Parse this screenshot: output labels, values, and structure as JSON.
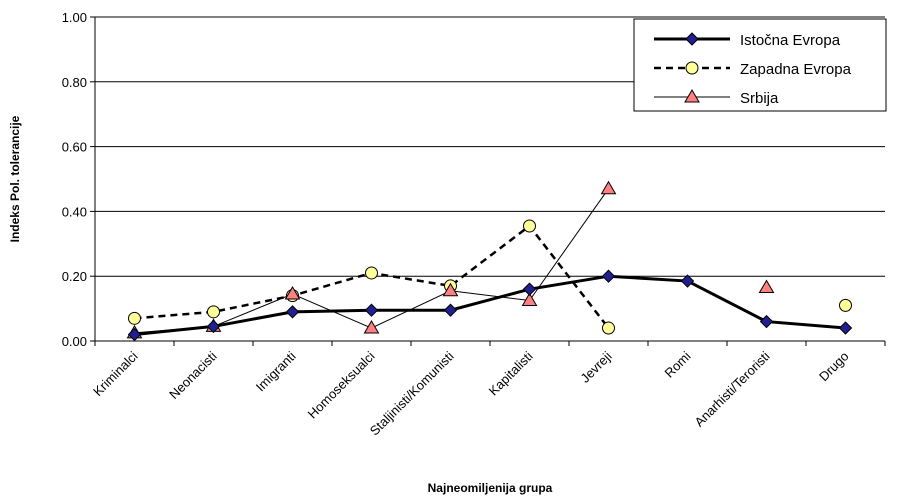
{
  "chart_data": {
    "type": "line",
    "title": "",
    "xlabel": "Najneomiljenija grupa",
    "ylabel": "Indeks Pol. tolerancije",
    "ylim": [
      0,
      1
    ],
    "yticks": [
      "0.00",
      "0.20",
      "0.40",
      "0.60",
      "0.80",
      "1.00"
    ],
    "grid": true,
    "legend_position": "top-right",
    "categories": [
      "Kriminalci",
      "Neonacisti",
      "Imigranti",
      "Homoseksualci",
      "Staljinisti/Komunisti",
      "Kapitalisti",
      "Jevreji",
      "Romi",
      "Anarhisti/Teroristi",
      "Drugo"
    ],
    "series": [
      {
        "name": "Istočna Evropa",
        "style": "thick-solid",
        "marker": "diamond",
        "color": "#000000",
        "marker_color": "#1f1f8f",
        "values": [
          0.02,
          0.045,
          0.09,
          0.095,
          0.095,
          0.16,
          0.2,
          0.185,
          0.06,
          0.04
        ]
      },
      {
        "name": "Zapadna Evropa",
        "style": "dashed",
        "marker": "circle",
        "color": "#000000",
        "marker_color": "#ffff99",
        "values": [
          0.07,
          0.09,
          0.14,
          0.21,
          0.17,
          0.355,
          0.04,
          null,
          null,
          0.11
        ]
      },
      {
        "name": "Srbija",
        "style": "thin-solid",
        "marker": "triangle",
        "color": "#000000",
        "marker_color": "#ff8080",
        "values": [
          0.025,
          0.045,
          0.145,
          0.04,
          0.155,
          0.125,
          0.47,
          null,
          0.165,
          null
        ]
      }
    ]
  }
}
